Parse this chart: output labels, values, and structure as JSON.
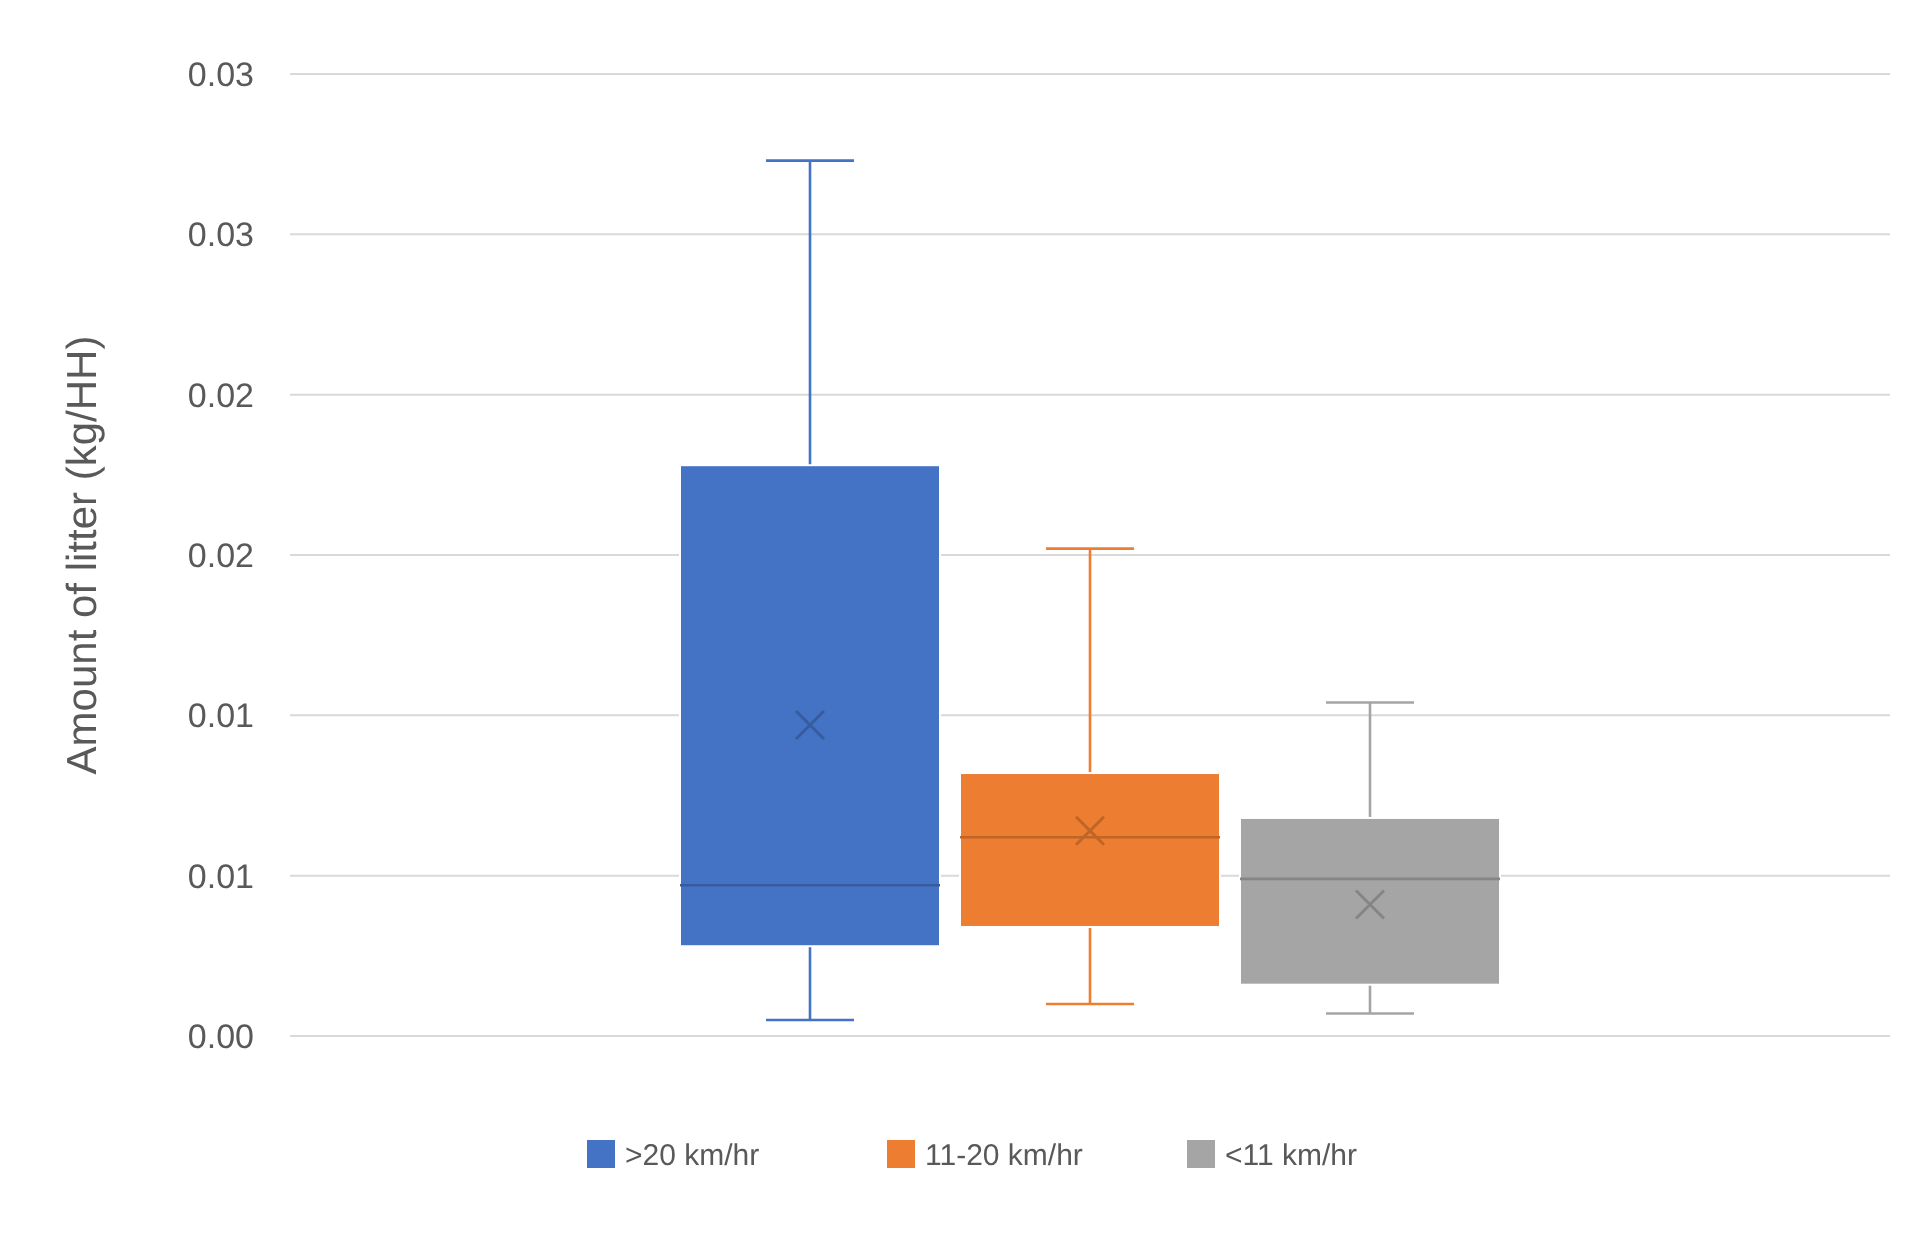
{
  "chart_data": {
    "type": "box",
    "ylabel": "Amount of litter (kg/HH)",
    "categories": [
      null
    ],
    "series": [
      {
        "name": ">20 km/hr",
        "color": "#4472c4",
        "boxes": [
          {
            "low": 0.0005,
            "q1": 0.0028,
            "median": 0.0047,
            "q3": 0.0178,
            "high": 0.0273,
            "mean": 0.0097
          }
        ]
      },
      {
        "name": "11-20 km/hr",
        "color": "#ed7d31",
        "boxes": [
          {
            "low": 0.001,
            "q1": 0.0034,
            "median": 0.0062,
            "q3": 0.0082,
            "high": 0.0152,
            "mean": 0.0064
          }
        ]
      },
      {
        "name": "<11 km/hr",
        "color": "#a5a5a5",
        "boxes": [
          {
            "low": 0.0007,
            "q1": 0.0016,
            "median": 0.0049,
            "q3": 0.0068,
            "high": 0.0104,
            "mean": 0.0041
          }
        ]
      }
    ],
    "ylim": [
      0,
      0.03
    ],
    "yticks": [
      {
        "value": 0,
        "label": "0.00"
      },
      {
        "value": 0.005,
        "label": "0.01"
      },
      {
        "value": 0.01,
        "label": "0.01"
      },
      {
        "value": 0.015,
        "label": "0.02"
      },
      {
        "value": 0.02,
        "label": "0.02"
      },
      {
        "value": 0.025,
        "label": "0.03"
      },
      {
        "value": 0.03,
        "label": "0.03"
      }
    ],
    "grid": "y",
    "legend": "bottom"
  }
}
